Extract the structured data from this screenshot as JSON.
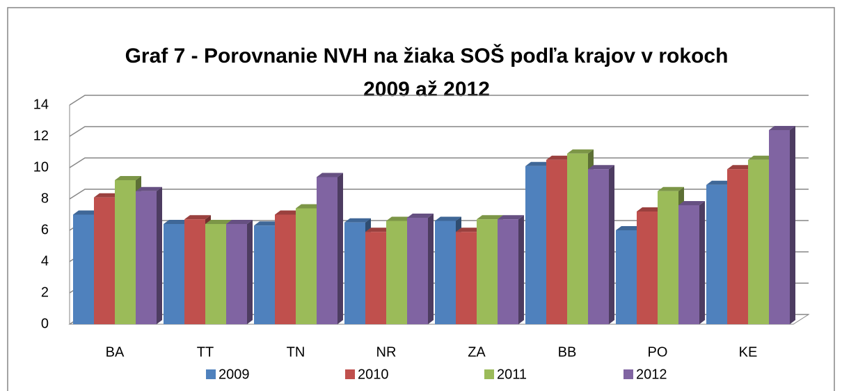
{
  "chart_data": {
    "type": "bar3d",
    "title": [
      "Graf  7 - Porovnanie NVH na žiaka SOŠ podľa krajov v rokoch",
      "2009 až 2012"
    ],
    "categories": [
      "BA",
      "TT",
      "TN",
      "NR",
      "ZA",
      "BB",
      "PO",
      "KE"
    ],
    "series": [
      {
        "name": "2009",
        "color": "#4f81bd",
        "values": [
          7.0,
          6.4,
          6.3,
          6.5,
          6.6,
          10.1,
          6.0,
          8.9
        ]
      },
      {
        "name": "2010",
        "color": "#c0504d",
        "values": [
          8.1,
          6.7,
          7.0,
          5.9,
          5.9,
          10.5,
          7.2,
          9.9
        ]
      },
      {
        "name": "2011",
        "color": "#9bbb59",
        "values": [
          9.2,
          6.4,
          7.4,
          6.6,
          6.7,
          10.9,
          8.5,
          10.5
        ]
      },
      {
        "name": "2012",
        "color": "#8064a2",
        "values": [
          8.5,
          6.4,
          9.4,
          6.8,
          6.7,
          9.9,
          7.6,
          12.4
        ]
      }
    ],
    "ylim": [
      0,
      14
    ],
    "yticks": [
      0,
      2,
      4,
      6,
      8,
      10,
      12,
      14
    ],
    "grid": true,
    "legend": "bottom"
  }
}
